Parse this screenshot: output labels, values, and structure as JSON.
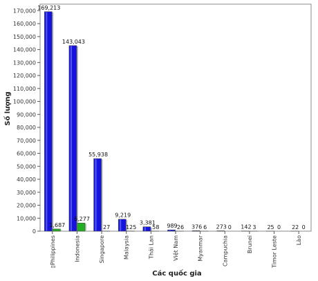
{
  "chart_data": {
    "type": "bar",
    "title": "",
    "xlabel": "Các quốc gia",
    "ylabel": "Số lượng",
    "categories": [
      "Philippines",
      "Indonesia",
      "Singapore",
      "Malaysia",
      "Thái Lan",
      "Việt Nam",
      "Myanmar",
      "Campuchia",
      "Brunei",
      "Timor Leste",
      "Lào"
    ],
    "category_prefixes": [
      "▯",
      "",
      "",
      "",
      "",
      "",
      "",
      "",
      "",
      "",
      ""
    ],
    "series": [
      {
        "values": [
          169213,
          143043,
          55938,
          9219,
          3381,
          989,
          376,
          273,
          142,
          25,
          22
        ]
      },
      {
        "values": [
          1687,
          6277,
          27,
          125,
          58,
          26,
          6,
          0,
          3,
          0,
          0
        ]
      }
    ],
    "series_colors": [
      "#1414dc",
      "#22b022"
    ],
    "ylim": [
      0,
      175000
    ],
    "ytick_step": 10000,
    "ytick_labels": [
      "0",
      "10,000",
      "20,000",
      "30,000",
      "40,000",
      "50,000",
      "60,000",
      "70,000",
      "80,000",
      "90,000",
      "100,000",
      "110,000",
      "120,000",
      "130,000",
      "140,000",
      "150,000",
      "160,000",
      "170,000"
    ],
    "data_labels": [
      [
        "169,213",
        "143,043",
        "55,938",
        "9,219",
        "3,381",
        "989",
        "376",
        "273",
        "142",
        "25",
        "22"
      ],
      [
        "1,687",
        "6,277",
        "27",
        "125",
        "58",
        "26",
        "6",
        "0",
        "3",
        "0",
        "0"
      ]
    ],
    "grid": false,
    "legend": "none"
  }
}
